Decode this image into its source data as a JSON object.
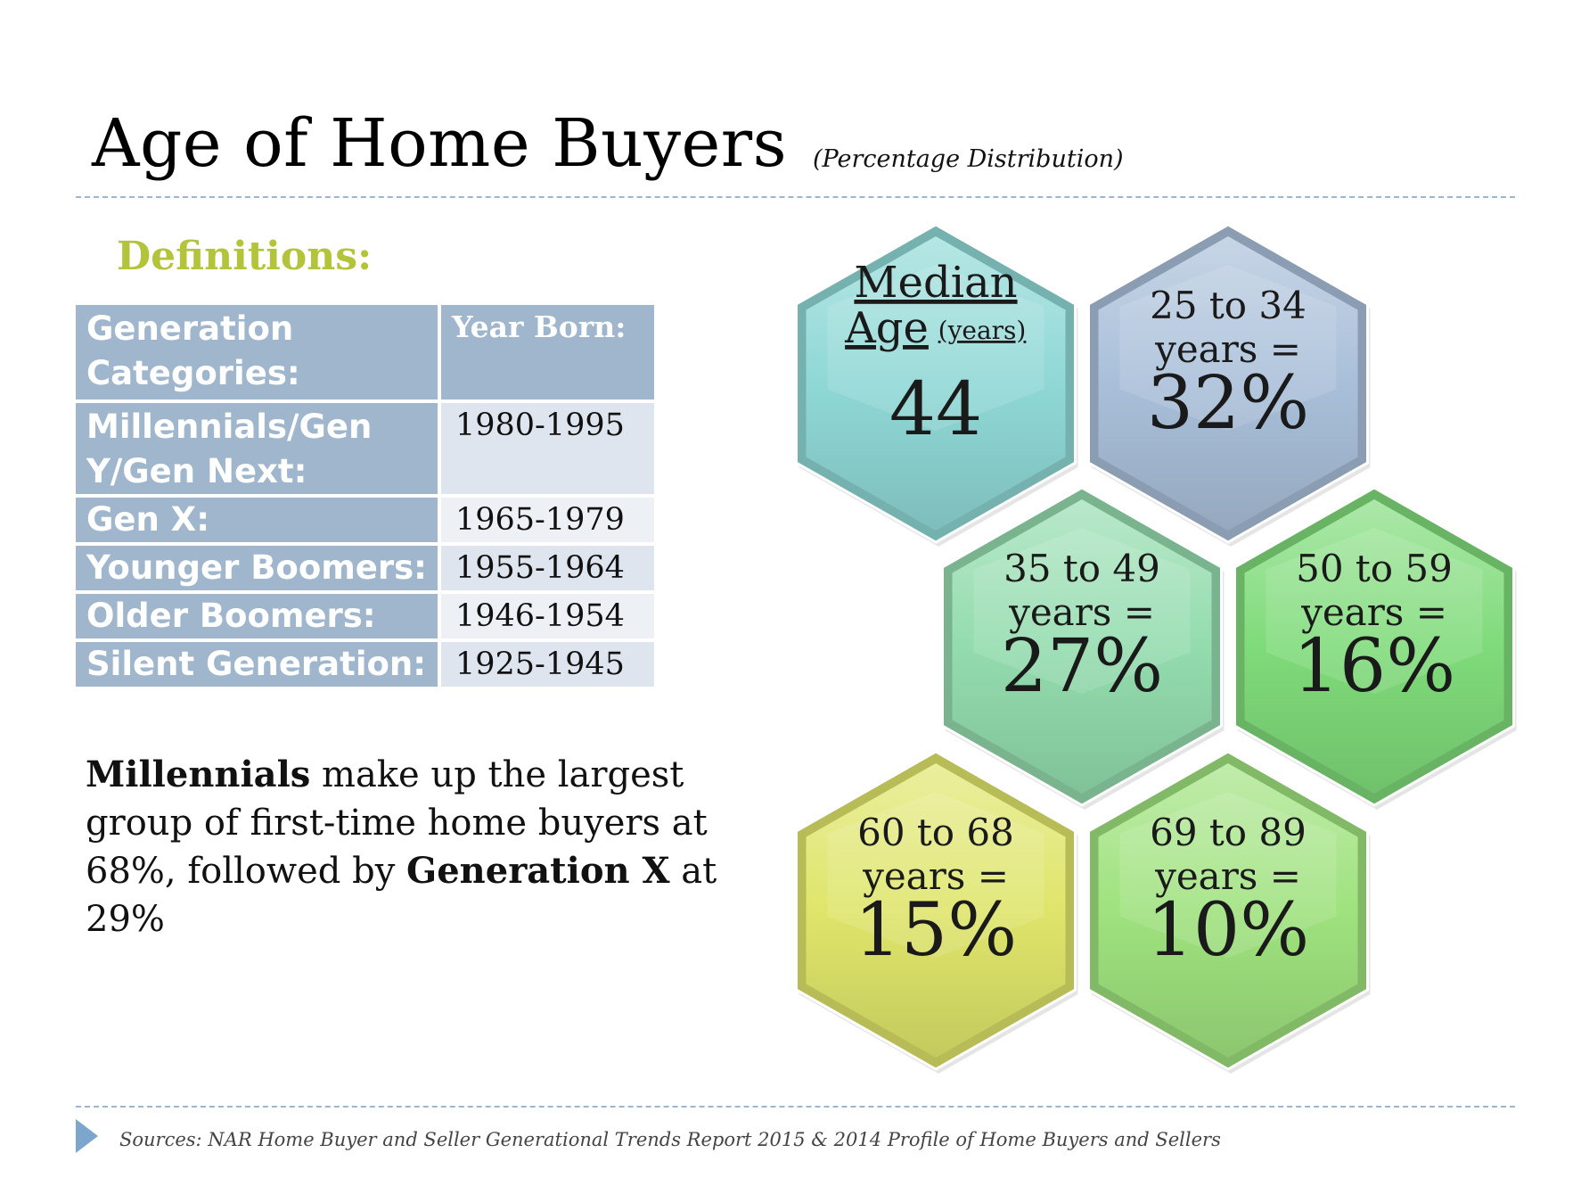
{
  "title": "Age of Home Buyers",
  "subtitle": "(Percentage Distribution)",
  "definitions_heading": "Definitions:",
  "table": {
    "header_category": "Generation Categories:",
    "header_year": "Year Born:",
    "rows": [
      {
        "category": "Millennials/Gen Y/Gen Next:",
        "year": "1980-1995"
      },
      {
        "category": "Gen X:",
        "year": "1965-1979"
      },
      {
        "category": "Younger Boomers:",
        "year": "1955-1964"
      },
      {
        "category": "Older Boomers:",
        "year": "1946-1954"
      },
      {
        "category": "Silent Generation:",
        "year": "1925-1945"
      }
    ]
  },
  "summary": {
    "bold1": "Millennials",
    "text1": " make up the largest group of first-time home buyers at 68%, followed by ",
    "bold2": "Generation X",
    "text2": " at 29%"
  },
  "hexagons": [
    {
      "kind": "median",
      "line1": "Median",
      "line2": "Age",
      "unit": "(years)",
      "value": "44",
      "color": "#8fd8d6"
    },
    {
      "kind": "range",
      "line1": "25 to 34",
      "line2": "years =",
      "value": "32%",
      "color": "#a9bfd9"
    },
    {
      "kind": "range",
      "line1": "35 to 49",
      "line2": "years =",
      "value": "27%",
      "color": "#93dcae"
    },
    {
      "kind": "range",
      "line1": "50 to 59",
      "line2": "years =",
      "value": "16%",
      "color": "#7fdb7a"
    },
    {
      "kind": "range",
      "line1": "60 to 68",
      "line2": "years =",
      "value": "15%",
      "color": "#dfe56a"
    },
    {
      "kind": "range",
      "line1": "69 to 89",
      "line2": "years =",
      "value": "10%",
      "color": "#9fe27e"
    }
  ],
  "sources": "Sources: NAR Home Buyer and Seller Generational Trends Report 2015 & 2014 Profile of Home Buyers and Sellers"
}
